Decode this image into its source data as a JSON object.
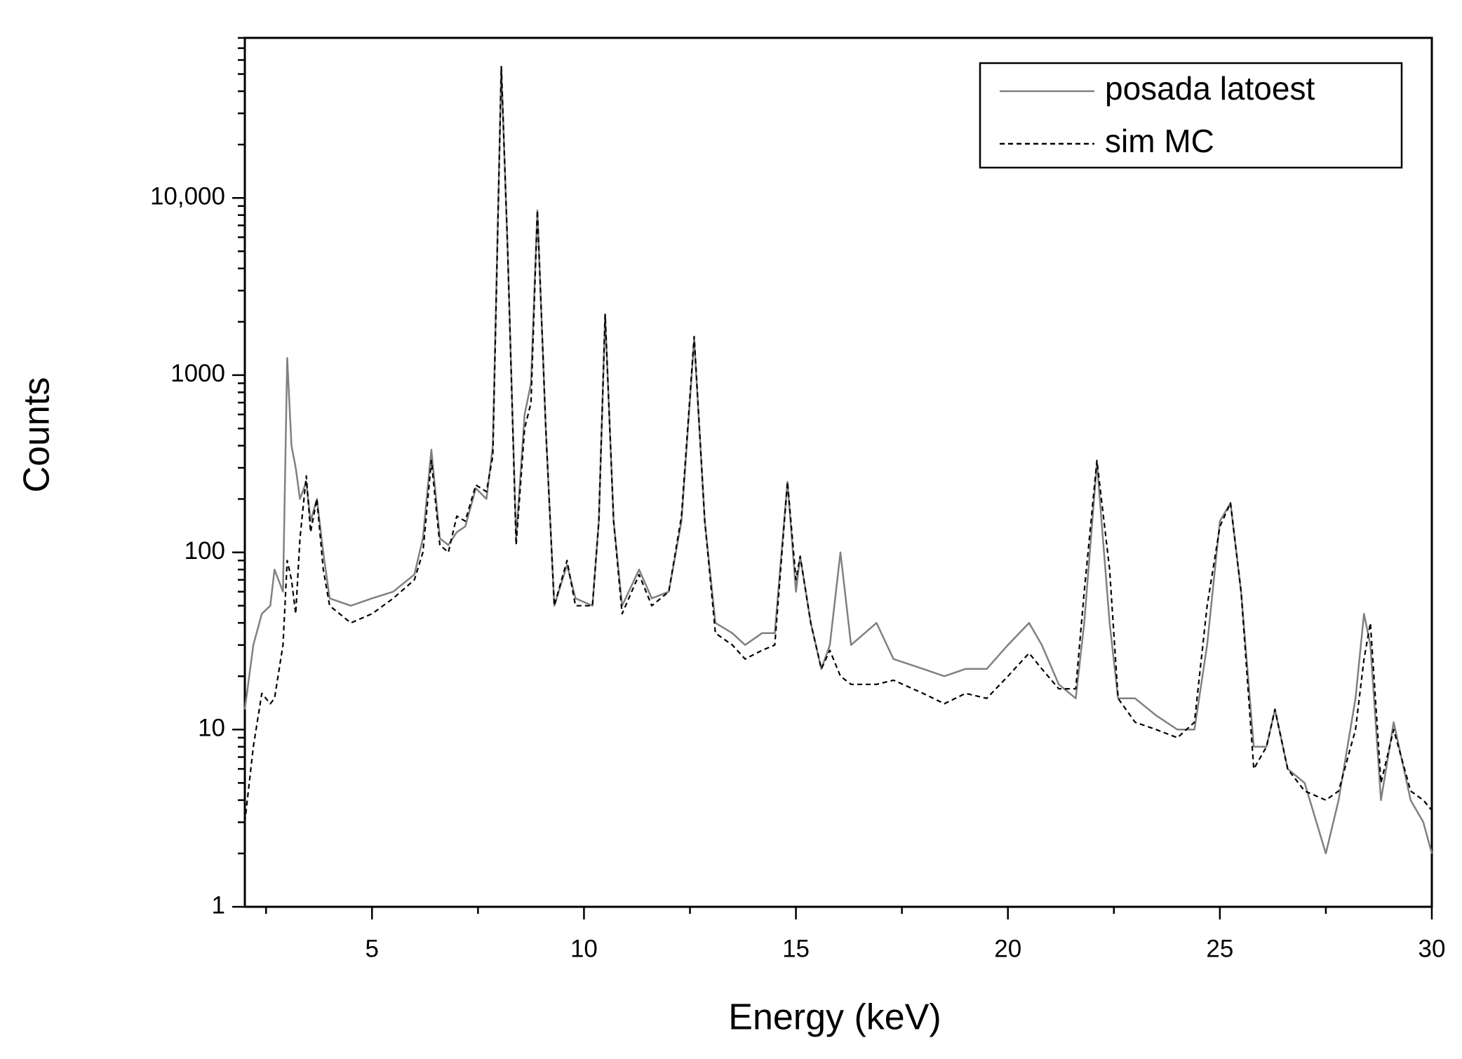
{
  "chart_data": {
    "type": "line",
    "x_label": "Energy (keV)",
    "y_label": "Counts",
    "x": [
      2.0,
      2.2,
      2.4,
      2.6,
      2.7,
      2.9,
      3.0,
      3.1,
      3.2,
      3.3,
      3.45,
      3.55,
      3.7,
      3.85,
      4.0,
      4.5,
      5.0,
      5.5,
      6.0,
      6.2,
      6.4,
      6.6,
      6.8,
      7.0,
      7.2,
      7.45,
      7.7,
      7.85,
      8.05,
      8.2,
      8.4,
      8.6,
      8.75,
      8.9,
      9.1,
      9.3,
      9.6,
      9.8,
      10.2,
      10.35,
      10.5,
      10.7,
      10.9,
      11.3,
      11.6,
      12.0,
      12.3,
      12.6,
      12.85,
      13.1,
      13.5,
      13.8,
      14.2,
      14.5,
      14.8,
      15.0,
      15.1,
      15.35,
      15.6,
      15.8,
      16.05,
      16.3,
      16.9,
      17.3,
      18.0,
      18.5,
      19.0,
      19.5,
      20.0,
      20.5,
      20.8,
      21.2,
      21.6,
      21.8,
      22.1,
      22.4,
      22.6,
      23.0,
      23.5,
      24.0,
      24.4,
      24.7,
      25.0,
      25.25,
      25.5,
      25.8,
      26.1,
      26.3,
      26.6,
      27.0,
      27.5,
      27.8,
      28.2,
      28.4,
      28.55,
      28.8,
      29.1,
      29.5,
      29.8,
      30.0
    ],
    "series": [
      {
        "name": "posada latoest",
        "color": "#808080",
        "line_style": "solid",
        "values": [
          13,
          30,
          45,
          50,
          80,
          60,
          1250,
          400,
          300,
          200,
          250,
          150,
          200,
          100,
          55,
          50,
          55,
          60,
          75,
          120,
          380,
          120,
          110,
          130,
          140,
          230,
          200,
          400,
          55000,
          5000,
          120,
          600,
          900,
          8500,
          500,
          50,
          85,
          55,
          50,
          150,
          2200,
          150,
          50,
          80,
          55,
          60,
          150,
          1600,
          150,
          40,
          35,
          30,
          35,
          35,
          250,
          60,
          95,
          40,
          22,
          30,
          100,
          30,
          40,
          25,
          22,
          20,
          22,
          22,
          30,
          40,
          30,
          18,
          15,
          40,
          320,
          40,
          15,
          15,
          12,
          10,
          10,
          30,
          150,
          190,
          60,
          8,
          8,
          13,
          6,
          5,
          2,
          4,
          15,
          45,
          30,
          4,
          11,
          4,
          3,
          2
        ]
      },
      {
        "name": "sim MC",
        "color": "#000000",
        "line_style": "dashed",
        "values": [
          3,
          8,
          16,
          14,
          15,
          30,
          90,
          70,
          45,
          120,
          270,
          130,
          200,
          80,
          50,
          40,
          45,
          55,
          70,
          100,
          330,
          110,
          100,
          160,
          150,
          240,
          220,
          350,
          55000,
          5000,
          110,
          500,
          700,
          8500,
          500,
          50,
          90,
          50,
          50,
          150,
          2200,
          150,
          45,
          75,
          50,
          60,
          160,
          1650,
          150,
          35,
          30,
          25,
          28,
          30,
          250,
          70,
          95,
          40,
          22,
          28,
          20,
          18,
          18,
          19,
          16,
          14,
          16,
          15,
          20,
          27,
          22,
          17,
          17,
          60,
          330,
          80,
          15,
          11,
          10,
          9,
          11,
          50,
          140,
          190,
          60,
          6,
          8,
          13,
          6,
          4.5,
          4,
          4.5,
          10,
          25,
          40,
          5,
          10,
          4.5,
          4,
          3.5
        ]
      }
    ],
    "xlim": [
      2,
      30
    ],
    "xticks": [
      5,
      10,
      15,
      20,
      25,
      30
    ],
    "ylim": [
      1,
      80000
    ],
    "ylog": true,
    "yticks": [
      1,
      10,
      100,
      1000,
      {
        "value": 10000,
        "label": "10,000"
      }
    ],
    "legend": "upper right"
  }
}
